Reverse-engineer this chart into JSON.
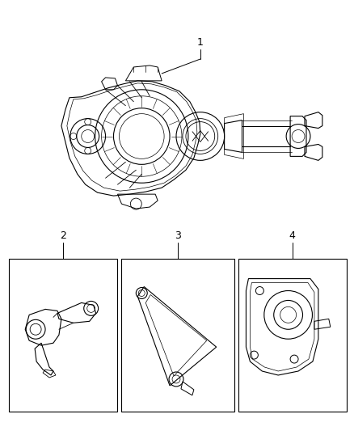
{
  "background_color": "#ffffff",
  "line_color": "#000000",
  "fig_width": 4.38,
  "fig_height": 5.33,
  "dpi": 100,
  "font_size": 9
}
